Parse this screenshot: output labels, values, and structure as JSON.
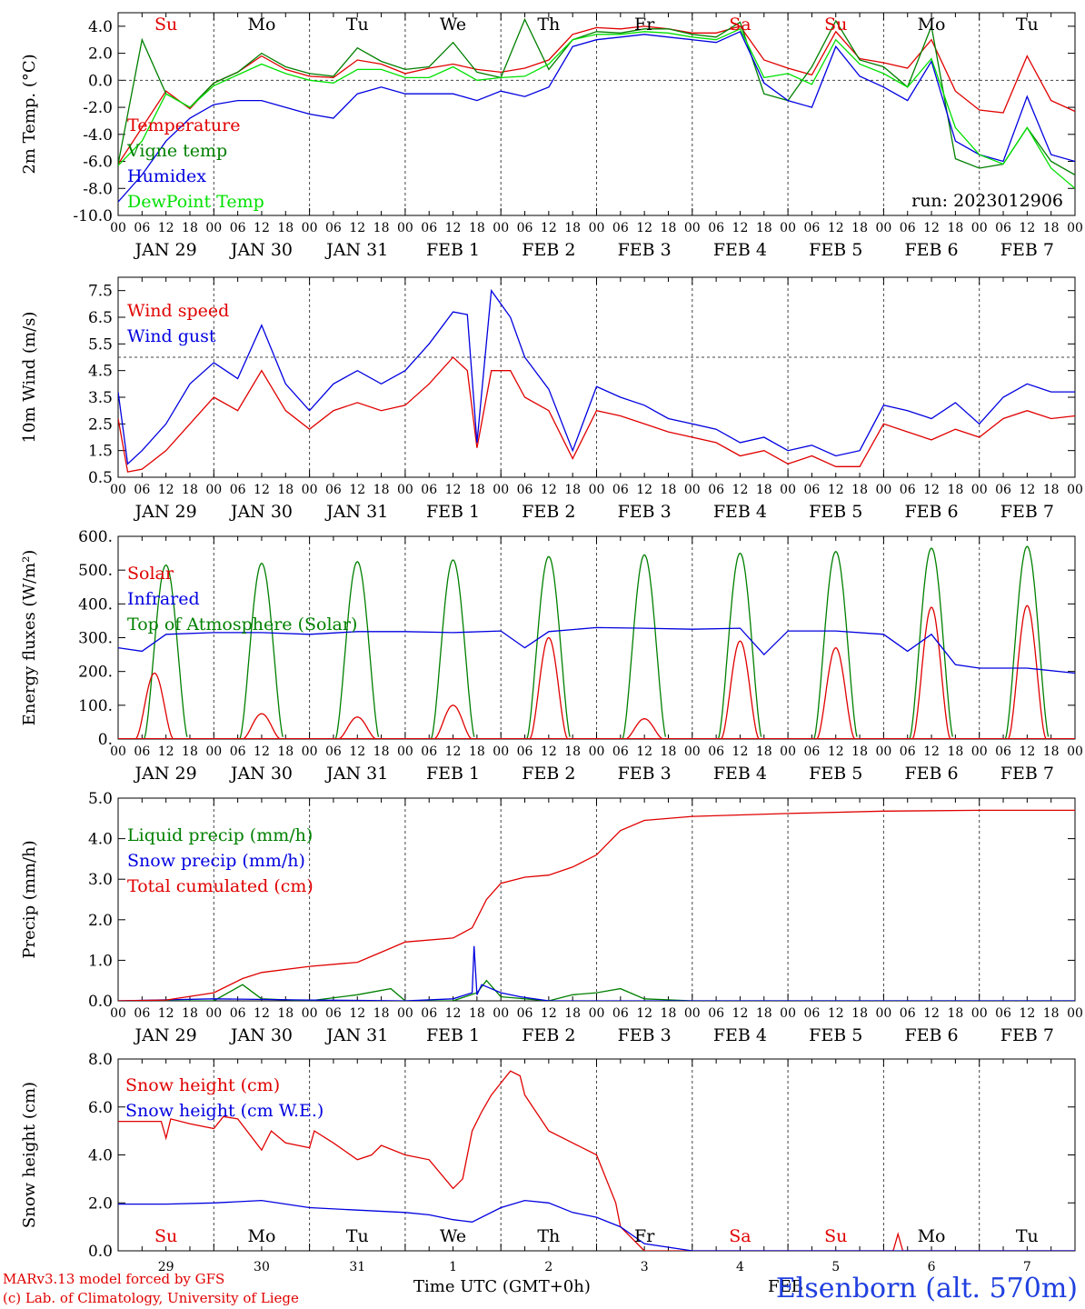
{
  "station": "Elsenborn (alt. 570m)",
  "xlabel": "Time UTC (GMT+0h)",
  "credit_model": "MARv3.13 model forced by GFS",
  "credit_lab": "(c) Lab. of Climatology, University of Liege",
  "run_label": "run: 2023012906",
  "colors": {
    "red": "#e00000",
    "green": "#008000",
    "blue": "#0000e0",
    "lightgreen": "#00e000",
    "station": "#2040e0"
  },
  "x_axis": {
    "hour_ticks": [
      "00",
      "06",
      "12",
      "18"
    ],
    "date_labels": [
      "JAN 29",
      "JAN 30",
      "JAN 31",
      "FEB  1",
      "FEB  2",
      "FEB  3",
      "FEB  4",
      "FEB  5",
      "FEB  6",
      "FEB  7"
    ],
    "weekday_labels": [
      "Su",
      "Mo",
      "Tu",
      "We",
      "Th",
      "Fr",
      "Sa",
      "Su",
      "Mo",
      "Tu"
    ],
    "weekday_colors": [
      "red",
      "black",
      "black",
      "black",
      "black",
      "black",
      "red",
      "red",
      "black",
      "black"
    ],
    "bottom_day_numbers": [
      "29",
      "30",
      "31",
      "1",
      "2",
      "3",
      "4",
      "5",
      "6",
      "7"
    ],
    "bottom_month": "FEB"
  },
  "chart_data": [
    {
      "type": "line",
      "ylabel": "2m Temp. (°C)",
      "ylim": [
        -10,
        5
      ],
      "yticks": [
        "4.0",
        "2.0",
        "0.0",
        "-2.0",
        "-4.0",
        "-6.0",
        "-8.0",
        "-10.0"
      ],
      "x_unit": "days since JAN 29 00 UTC",
      "reference_line": 0,
      "legend": [
        "Temperature",
        "Vigne temp",
        "Humidex",
        "DewPoint Temp"
      ],
      "series": [
        {
          "name": "Temperature",
          "color": "red",
          "x": [
            0,
            0.25,
            0.5,
            0.75,
            1,
            1.25,
            1.5,
            1.75,
            2,
            2.25,
            2.5,
            2.75,
            3,
            3.25,
            3.5,
            3.75,
            4,
            4.25,
            4.5,
            4.75,
            5,
            5.25,
            5.5,
            5.75,
            6,
            6.25,
            6.5,
            6.75,
            7,
            7.25,
            7.5,
            7.75,
            8,
            8.25,
            8.5,
            8.75,
            9,
            9.25,
            9.5,
            9.75,
            10
          ],
          "y": [
            -6.2,
            -3.5,
            -0.8,
            -2.1,
            -0.2,
            0.6,
            1.8,
            0.8,
            0.3,
            0.2,
            1.5,
            1.2,
            0.5,
            0.9,
            1.2,
            0.8,
            0.6,
            0.9,
            1.5,
            3.4,
            3.9,
            3.8,
            4.0,
            3.8,
            3.5,
            3.5,
            4.0,
            1.5,
            0.9,
            0.4,
            3.6,
            1.6,
            1.3,
            0.9,
            3.0,
            -0.8,
            -2.2,
            -2.4,
            1.8,
            -1.5,
            -2.3
          ]
        },
        {
          "name": "Vigne temp",
          "color": "green",
          "x": [
            0,
            0.25,
            0.5,
            0.75,
            1,
            1.25,
            1.5,
            1.75,
            2,
            2.25,
            2.5,
            2.75,
            3,
            3.25,
            3.5,
            3.75,
            4,
            4.25,
            4.5,
            4.75,
            5,
            5.25,
            5.5,
            5.75,
            6,
            6.25,
            6.5,
            6.75,
            7,
            7.25,
            7.5,
            7.75,
            8,
            8.25,
            8.5,
            8.75,
            9,
            9.25,
            9.5,
            9.75,
            10
          ],
          "y": [
            -6.2,
            3.0,
            -1.0,
            -2.0,
            -0.2,
            0.6,
            2.0,
            1.0,
            0.5,
            0.3,
            2.4,
            1.4,
            0.8,
            1.0,
            2.8,
            0.6,
            0.2,
            4.5,
            0.8,
            3.0,
            3.6,
            3.5,
            3.8,
            3.8,
            3.4,
            3.2,
            4.3,
            -1.0,
            -1.5,
            1.0,
            4.4,
            1.5,
            1.0,
            -0.5,
            4.0,
            -5.8,
            -6.5,
            -6.2,
            -3.5,
            -6.0,
            -7.0
          ]
        },
        {
          "name": "Humidex",
          "color": "blue",
          "x": [
            0,
            0.25,
            0.5,
            0.75,
            1,
            1.25,
            1.5,
            1.75,
            2,
            2.25,
            2.5,
            2.75,
            3,
            3.25,
            3.5,
            3.75,
            4,
            4.25,
            4.5,
            4.75,
            5,
            5.25,
            5.5,
            5.75,
            6,
            6.25,
            6.5,
            6.75,
            7,
            7.25,
            7.5,
            7.75,
            8,
            8.25,
            8.5,
            8.75,
            9,
            9.25,
            9.5,
            9.75,
            10
          ],
          "y": [
            -9.0,
            -7.0,
            -4.5,
            -2.8,
            -1.8,
            -1.5,
            -1.5,
            -2.0,
            -2.5,
            -2.8,
            -1.0,
            -0.5,
            -1.0,
            -1.0,
            -1.0,
            -1.5,
            -0.8,
            -1.2,
            -0.5,
            2.5,
            3.0,
            3.2,
            3.4,
            3.2,
            3.0,
            2.8,
            3.6,
            -0.2,
            -1.5,
            -2.0,
            2.5,
            0.3,
            -0.5,
            -1.5,
            1.4,
            -4.5,
            -5.5,
            -6.0,
            -1.2,
            -5.5,
            -6.0
          ]
        },
        {
          "name": "DewPoint Temp",
          "color": "lightgreen",
          "x": [
            0,
            0.25,
            0.5,
            0.75,
            1,
            1.25,
            1.5,
            1.75,
            2,
            2.25,
            2.5,
            2.75,
            3,
            3.25,
            3.5,
            3.75,
            4,
            4.25,
            4.5,
            4.75,
            5,
            5.25,
            5.5,
            5.75,
            6,
            6.25,
            6.5,
            6.75,
            7,
            7.25,
            7.5,
            7.75,
            8,
            8.25,
            8.5,
            8.75,
            9,
            9.25,
            9.5,
            9.75,
            10
          ],
          "y": [
            -6.3,
            -4.5,
            -1.0,
            -2.0,
            -0.4,
            0.4,
            1.2,
            0.5,
            0.0,
            -0.2,
            0.8,
            0.8,
            0.2,
            0.2,
            1.0,
            0.0,
            0.2,
            0.3,
            1.2,
            3.0,
            3.4,
            3.4,
            3.6,
            3.5,
            3.2,
            3.0,
            3.8,
            0.2,
            0.5,
            -0.3,
            3.0,
            1.2,
            0.5,
            -0.5,
            1.6,
            -3.5,
            -5.5,
            -6.2,
            -3.5,
            -6.5,
            -8.0
          ]
        }
      ]
    },
    {
      "type": "line",
      "ylabel": "10m Wind (m/s)",
      "ylim": [
        0.5,
        8.0
      ],
      "yticks": [
        "7.5",
        "6.5",
        "5.5",
        "4.5",
        "3.5",
        "2.5",
        "1.5",
        "0.5"
      ],
      "x_unit": "days since JAN 29 00 UTC",
      "reference_line": 5.0,
      "legend": [
        "Wind speed",
        "Wind gust"
      ],
      "series": [
        {
          "name": "Wind speed",
          "color": "red",
          "x": [
            0,
            0.1,
            0.25,
            0.5,
            0.75,
            1,
            1.25,
            1.5,
            1.75,
            2,
            2.25,
            2.5,
            2.75,
            3,
            3.25,
            3.5,
            3.65,
            3.75,
            3.9,
            4.1,
            4.25,
            4.5,
            4.75,
            5,
            5.25,
            5.5,
            5.75,
            6,
            6.25,
            6.5,
            6.75,
            7,
            7.25,
            7.5,
            7.75,
            8,
            8.25,
            8.5,
            8.75,
            9,
            9.25,
            9.5,
            9.75,
            10
          ],
          "y": [
            2.7,
            0.7,
            0.8,
            1.5,
            2.5,
            3.5,
            3.0,
            4.5,
            3.0,
            2.3,
            3.0,
            3.3,
            3.0,
            3.2,
            4.0,
            5.0,
            4.5,
            1.6,
            4.5,
            4.5,
            3.5,
            3.0,
            1.2,
            3.0,
            2.8,
            2.5,
            2.2,
            2.0,
            1.8,
            1.3,
            1.5,
            1.0,
            1.3,
            0.9,
            0.9,
            2.5,
            2.2,
            1.9,
            2.3,
            2.0,
            2.7,
            3.0,
            2.7,
            2.8
          ]
        },
        {
          "name": "Wind gust",
          "color": "blue",
          "x": [
            0,
            0.1,
            0.25,
            0.5,
            0.75,
            1,
            1.25,
            1.5,
            1.75,
            2,
            2.25,
            2.5,
            2.75,
            3,
            3.25,
            3.5,
            3.65,
            3.75,
            3.9,
            4.1,
            4.25,
            4.5,
            4.75,
            5,
            5.25,
            5.5,
            5.75,
            6,
            6.25,
            6.5,
            6.75,
            7,
            7.25,
            7.5,
            7.75,
            8,
            8.25,
            8.5,
            8.75,
            9,
            9.25,
            9.5,
            9.75,
            10
          ],
          "y": [
            3.7,
            1.0,
            1.5,
            2.5,
            4.0,
            4.8,
            4.2,
            6.2,
            4.0,
            3.0,
            4.0,
            4.5,
            4.0,
            4.5,
            5.5,
            6.7,
            6.6,
            1.8,
            7.5,
            6.5,
            5.0,
            3.8,
            1.5,
            3.9,
            3.5,
            3.2,
            2.7,
            2.5,
            2.3,
            1.8,
            2.0,
            1.5,
            1.7,
            1.3,
            1.5,
            3.2,
            3.0,
            2.7,
            3.3,
            2.5,
            3.5,
            4.0,
            3.7,
            3.7
          ]
        }
      ]
    },
    {
      "type": "line",
      "ylabel": "Energy fluxes (W/m²)",
      "ylim": [
        0,
        600
      ],
      "yticks": [
        "600.",
        "500.",
        "400.",
        "300.",
        "200.",
        "100.",
        "0."
      ],
      "x_unit": "days since JAN 29 00 UTC",
      "legend": [
        "Solar",
        "Infrared",
        "Top of Atmosphere (Solar)"
      ],
      "series": [
        {
          "name": "Solar",
          "color": "red",
          "peaks": [
            195,
            75,
            65,
            100,
            300,
            60,
            290,
            270,
            390,
            395
          ],
          "peak_offset": [
            0.38,
            0.5,
            0.5,
            0.5,
            0.5,
            0.5,
            0.5,
            0.5,
            0.5,
            0.5
          ]
        },
        {
          "name": "Infrared",
          "color": "blue",
          "x": [
            0,
            0.25,
            0.5,
            1,
            1.5,
            2,
            2.5,
            3,
            3.5,
            4,
            4.25,
            4.5,
            5,
            5.5,
            6,
            6.5,
            6.75,
            7,
            7.5,
            8,
            8.25,
            8.5,
            8.75,
            9,
            9.5,
            10
          ],
          "y": [
            270,
            260,
            310,
            315,
            315,
            310,
            318,
            318,
            315,
            320,
            270,
            318,
            330,
            328,
            325,
            328,
            250,
            320,
            320,
            310,
            260,
            310,
            220,
            210,
            210,
            195
          ]
        },
        {
          "name": "Top of Atmosphere (Solar)",
          "color": "green",
          "peaks": [
            515,
            520,
            525,
            530,
            540,
            545,
            550,
            555,
            565,
            570
          ]
        }
      ]
    },
    {
      "type": "line",
      "ylabel": "Precip (mm/h)",
      "ylim": [
        0,
        5
      ],
      "yticks": [
        "5.0",
        "4.0",
        "3.0",
        "2.0",
        "1.0",
        "0.0"
      ],
      "x_unit": "days since JAN 29 00 UTC",
      "legend": [
        "Liquid precip (mm/h)",
        "Snow precip (mm/h)",
        "Total cumulated (cm)"
      ],
      "series": [
        {
          "name": "Liquid precip (mm/h)",
          "color": "green",
          "x": [
            0,
            1,
            1.3,
            1.5,
            2,
            2.5,
            2.85,
            3,
            3.5,
            3.75,
            3.85,
            4,
            4.5,
            4.75,
            5,
            5.25,
            5.5,
            6,
            7,
            8,
            9,
            10
          ],
          "y": [
            0,
            0,
            0.4,
            0.05,
            0,
            0.15,
            0.3,
            0,
            0,
            0.2,
            0.5,
            0.1,
            0,
            0.15,
            0.2,
            0.3,
            0.05,
            0,
            0,
            0,
            0,
            0
          ]
        },
        {
          "name": "Snow precip (mm/h)",
          "color": "blue",
          "x": [
            0,
            1,
            2,
            3,
            3.5,
            3.7,
            3.72,
            3.75,
            3.8,
            4,
            4.2,
            4.5,
            6,
            7,
            8,
            9,
            10
          ],
          "y": [
            0,
            0.05,
            0.02,
            0,
            0.05,
            0.2,
            1.35,
            0.15,
            0.4,
            0.2,
            0.1,
            0,
            0,
            0,
            0,
            0,
            0
          ]
        },
        {
          "name": "Total cumulated (cm)",
          "color": "red",
          "x": [
            0,
            0.5,
            1,
            1.3,
            1.5,
            2,
            2.5,
            2.75,
            3,
            3.5,
            3.7,
            3.85,
            4,
            4.25,
            4.5,
            4.75,
            5,
            5.25,
            5.5,
            6,
            7,
            8,
            9,
            10
          ],
          "y": [
            0,
            0.02,
            0.2,
            0.55,
            0.7,
            0.85,
            0.95,
            1.2,
            1.45,
            1.55,
            1.8,
            2.5,
            2.9,
            3.05,
            3.1,
            3.3,
            3.6,
            4.2,
            4.45,
            4.55,
            4.62,
            4.68,
            4.7,
            4.7
          ]
        }
      ]
    },
    {
      "type": "line",
      "ylabel": "Snow height (cm)",
      "ylim": [
        0,
        8
      ],
      "yticks": [
        "8.0",
        "6.0",
        "4.0",
        "2.0",
        "0.0"
      ],
      "x_unit": "days since JAN 29 00 UTC",
      "legend": [
        "Snow height (cm)",
        "Snow height (cm W.E.)"
      ],
      "series": [
        {
          "name": "Snow height (cm)",
          "color": "red",
          "x": [
            0,
            0.45,
            0.5,
            0.55,
            0.75,
            1,
            1.1,
            1.25,
            1.5,
            1.6,
            1.75,
            2,
            2.05,
            2.25,
            2.5,
            2.65,
            2.75,
            3,
            3.25,
            3.5,
            3.6,
            3.7,
            3.8,
            3.9,
            4,
            4.1,
            4.2,
            4.25,
            4.5,
            4.75,
            5,
            5.2,
            5.25,
            5.5,
            5.75,
            6,
            8.1,
            8.15,
            8.2,
            9,
            10
          ],
          "y": [
            5.4,
            5.4,
            4.7,
            5.5,
            5.3,
            5.1,
            5.6,
            5.5,
            4.2,
            5.0,
            4.5,
            4.3,
            5.0,
            4.5,
            3.8,
            4.0,
            4.4,
            4.0,
            3.8,
            2.6,
            3.0,
            5.0,
            5.8,
            6.5,
            7.0,
            7.5,
            7.3,
            6.5,
            5.0,
            4.5,
            4.0,
            2.0,
            1.0,
            0.0,
            0.0,
            0.0,
            0.0,
            0.7,
            0.0,
            0.0,
            0.0
          ]
        },
        {
          "name": "Snow height (cm W.E.)",
          "color": "blue",
          "x": [
            0,
            0.5,
            1,
            1.5,
            2,
            2.5,
            3,
            3.25,
            3.5,
            3.7,
            4,
            4.25,
            4.5,
            4.75,
            5,
            5.25,
            5.5,
            6,
            10
          ],
          "y": [
            1.95,
            1.95,
            2.0,
            2.1,
            1.8,
            1.7,
            1.6,
            1.5,
            1.3,
            1.2,
            1.8,
            2.1,
            2.0,
            1.6,
            1.4,
            1.0,
            0.3,
            0.0,
            0.0
          ]
        }
      ]
    }
  ]
}
